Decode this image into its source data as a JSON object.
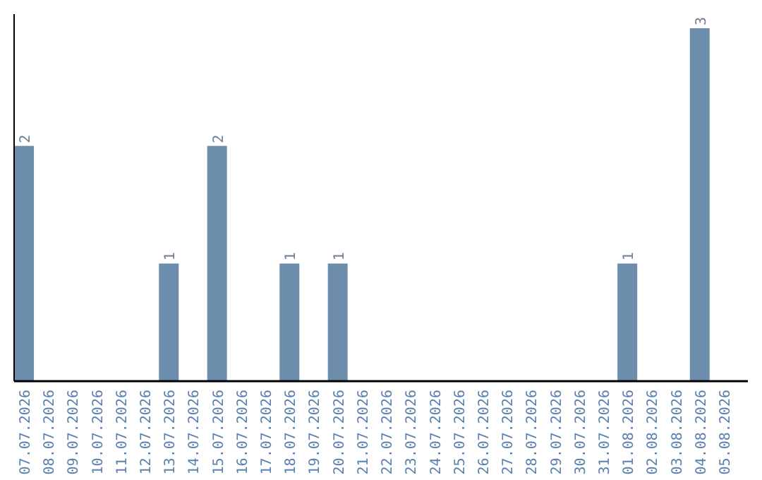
{
  "chart_data": {
    "type": "bar",
    "categories": [
      "07.07.2026",
      "08.07.2026",
      "09.07.2026",
      "10.07.2026",
      "11.07.2026",
      "12.07.2026",
      "13.07.2026",
      "14.07.2026",
      "15.07.2026",
      "16.07.2026",
      "17.07.2026",
      "18.07.2026",
      "19.07.2026",
      "20.07.2026",
      "21.07.2026",
      "22.07.2026",
      "23.07.2026",
      "24.07.2026",
      "25.07.2026",
      "26.07.2026",
      "27.07.2026",
      "28.07.2026",
      "29.07.2026",
      "30.07.2026",
      "31.07.2026",
      "01.08.2026",
      "02.08.2026",
      "03.08.2026",
      "04.08.2026",
      "05.08.2026"
    ],
    "values": [
      2,
      0,
      0,
      0,
      0,
      0,
      1,
      0,
      2,
      0,
      0,
      1,
      0,
      1,
      0,
      0,
      0,
      0,
      0,
      0,
      0,
      0,
      0,
      0,
      0,
      1,
      0,
      0,
      3,
      0
    ],
    "value_labels": [
      "2",
      null,
      null,
      null,
      null,
      null,
      "1",
      null,
      "2",
      null,
      null,
      "1",
      null,
      "1",
      null,
      null,
      null,
      null,
      null,
      null,
      null,
      null,
      null,
      null,
      null,
      "1",
      null,
      null,
      "3",
      null
    ],
    "color": "#6d8dad",
    "tick_labels": "x"
  }
}
